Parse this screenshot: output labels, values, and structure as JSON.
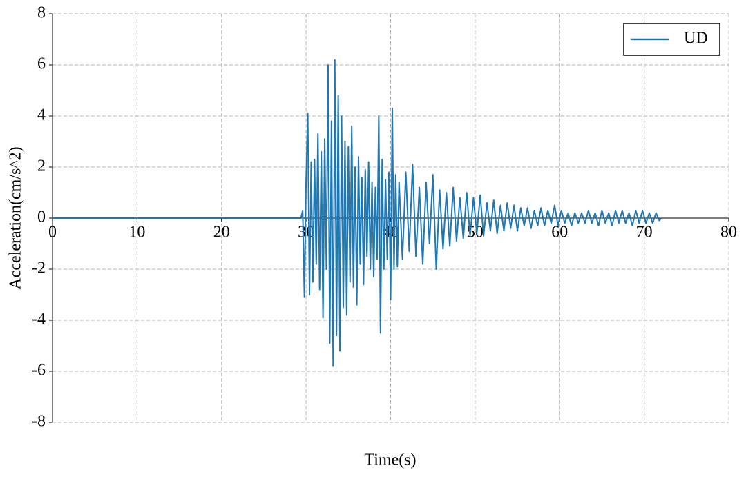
{
  "chart_data": {
    "type": "line",
    "xlabel": "Time(s)",
    "ylabel": "Acceleration(cm/s^2)",
    "xlim": [
      0,
      80
    ],
    "ylim": [
      -8,
      8
    ],
    "xticks": [
      0,
      10,
      20,
      30,
      40,
      50,
      60,
      70,
      80
    ],
    "yticks": [
      -8,
      -6,
      -4,
      -2,
      0,
      2,
      4,
      6,
      8
    ],
    "grid": true,
    "legend": "upper right",
    "x": [
      0,
      10,
      20,
      29.4,
      29.6,
      29.8,
      30.0,
      30.2,
      30.4,
      30.6,
      30.8,
      31.0,
      31.2,
      31.4,
      31.6,
      31.8,
      32.0,
      32.2,
      32.4,
      32.6,
      32.8,
      33.0,
      33.2,
      33.4,
      33.6,
      33.8,
      34.0,
      34.2,
      34.4,
      34.6,
      34.8,
      35.0,
      35.2,
      35.4,
      35.6,
      35.8,
      36.0,
      36.2,
      36.4,
      36.6,
      36.8,
      37.0,
      37.2,
      37.4,
      37.6,
      37.8,
      38.0,
      38.2,
      38.4,
      38.6,
      38.8,
      39.0,
      39.2,
      39.4,
      39.6,
      39.8,
      40.0,
      40.2,
      40.4,
      40.6,
      40.8,
      41.0,
      41.4,
      41.8,
      42.2,
      42.6,
      43.0,
      43.4,
      43.8,
      44.2,
      44.6,
      45.0,
      45.4,
      45.8,
      46.2,
      46.6,
      47.0,
      47.4,
      47.8,
      48.2,
      48.6,
      49.0,
      49.4,
      49.8,
      50.2,
      50.6,
      51.0,
      51.4,
      51.8,
      52.2,
      52.6,
      53.0,
      53.4,
      53.8,
      54.2,
      54.6,
      55.0,
      55.4,
      55.8,
      56.2,
      56.6,
      57.0,
      57.4,
      57.8,
      58.2,
      58.6,
      59.0,
      59.4,
      59.8,
      60.2,
      60.6,
      61.0,
      61.4,
      61.8,
      62.2,
      62.6,
      63.0,
      63.4,
      63.8,
      64.2,
      64.6,
      65.0,
      65.4,
      65.8,
      66.2,
      66.6,
      67.0,
      67.4,
      67.8,
      68.2,
      68.6,
      69.0,
      69.4,
      69.8,
      70.2,
      70.6,
      71.0,
      71.4,
      71.8,
      72.0
    ],
    "series": [
      {
        "name": "UD",
        "color": "#1f77b4",
        "values": [
          0,
          0,
          0,
          0,
          0.3,
          -3.1,
          1.5,
          4.1,
          -3.0,
          2.2,
          -2.5,
          2.3,
          -1.8,
          3.3,
          -2.8,
          2.6,
          -3.9,
          3.1,
          -2.0,
          6.0,
          -4.9,
          3.8,
          -5.8,
          6.2,
          -4.6,
          4.8,
          -5.2,
          4.0,
          -3.5,
          3.0,
          -3.8,
          2.8,
          -2.5,
          3.6,
          -2.7,
          2.0,
          -3.4,
          2.4,
          -1.8,
          1.6,
          -2.6,
          1.9,
          -1.5,
          2.2,
          -2.0,
          1.4,
          -2.3,
          1.2,
          -1.6,
          4.0,
          -4.5,
          2.3,
          -2.0,
          1.5,
          -1.6,
          1.8,
          -3.2,
          4.3,
          -2.0,
          1.7,
          -1.9,
          1.4,
          -1.6,
          1.8,
          -1.3,
          2.1,
          -1.5,
          1.2,
          -1.8,
          1.4,
          -1.0,
          1.7,
          -2.0,
          1.1,
          -1.2,
          1.0,
          -1.1,
          1.2,
          -0.9,
          0.8,
          -0.8,
          1.0,
          -0.7,
          0.8,
          -0.6,
          0.9,
          -0.7,
          0.6,
          -0.5,
          0.7,
          -0.6,
          0.5,
          -0.5,
          0.6,
          -0.4,
          0.5,
          -0.5,
          0.4,
          -0.3,
          0.4,
          -0.4,
          0.3,
          -0.3,
          0.4,
          -0.3,
          0.3,
          -0.2,
          0.5,
          -0.3,
          0.3,
          -0.2,
          0.2,
          -0.3,
          0.2,
          -0.2,
          0.2,
          -0.2,
          0.3,
          -0.2,
          0.2,
          -0.3,
          0.3,
          -0.2,
          0.2,
          -0.3,
          0.3,
          -0.2,
          0.3,
          -0.2,
          0.2,
          -0.3,
          0.3,
          -0.2,
          0.3,
          -0.2,
          0.2,
          -0.2,
          0.2,
          -0.1,
          0
        ]
      }
    ]
  }
}
